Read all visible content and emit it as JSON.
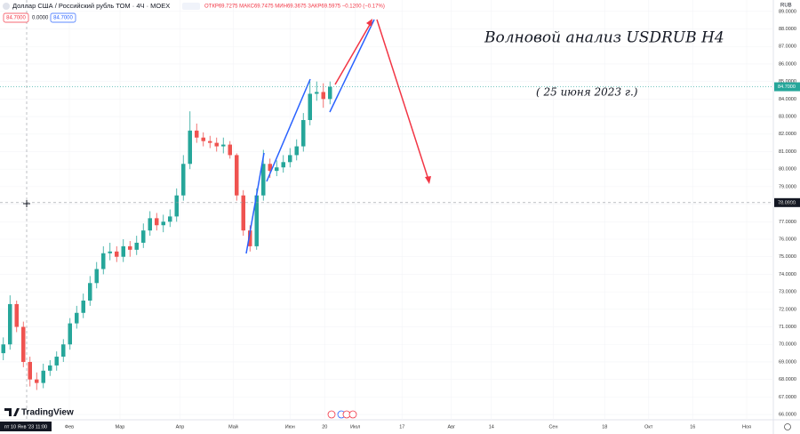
{
  "header": {
    "symbol": "Доллар США / Российский рубль ТОМ · 4Ч · MOEX",
    "ohlc": "ОТКР69.7275 МАКС69.7475 МИН69.3675 ЗАКР69.5975 −0.1200 (−0.17%)",
    "sell": "84.7000",
    "spread": "0.0000",
    "buy": "84.7000",
    "currency": "RUB",
    "logo": "TradingView"
  },
  "chart_data": {
    "type": "candlestick",
    "title": "Волновой анализ USDRUB H4",
    "subtitle": "( 25 июня 2023 г.)",
    "up_color": "#26a69a",
    "down_color": "#ef5350",
    "x": [
      0.5,
      1.5,
      2.5,
      3.5,
      4.5,
      5.5,
      6.5,
      7.5,
      8.5,
      9.5,
      10.5,
      11.5,
      12.5,
      13.5,
      14.5,
      15.5,
      16.5,
      17.5,
      18.5,
      19.5,
      20.5,
      21.5,
      22.5,
      23.5,
      24.5,
      25.5,
      26.5,
      27.5,
      28.5,
      29.5,
      30.5,
      31.5,
      32.5,
      33.5,
      34.5,
      35.5,
      36.5,
      37.5,
      38.5,
      39.5,
      40.5,
      41.5,
      42.5,
      43.5,
      44.5,
      45.5,
      46.5,
      47.5,
      48.5,
      49.5
    ],
    "open": [
      69.5,
      70.0,
      72.3,
      71.0,
      69.0,
      68.0,
      67.8,
      68.5,
      68.8,
      69.3,
      70.0,
      71.2,
      71.8,
      72.5,
      73.5,
      74.3,
      75.2,
      75.3,
      75.0,
      75.6,
      75.4,
      75.8,
      76.5,
      77.2,
      76.8,
      77.0,
      77.3,
      78.5,
      80.3,
      82.2,
      81.8,
      81.6,
      81.5,
      81.3,
      81.4,
      80.8,
      78.5,
      76.5,
      75.6,
      78.5,
      80.3,
      79.9,
      80.1,
      80.4,
      80.8,
      81.3,
      82.8,
      84.3,
      84.4,
      84.0
    ],
    "close": [
      70.0,
      72.3,
      71.0,
      69.0,
      68.0,
      67.8,
      68.5,
      68.8,
      69.3,
      70.0,
      71.2,
      71.8,
      72.5,
      73.5,
      74.3,
      75.2,
      75.3,
      75.0,
      75.6,
      75.4,
      75.8,
      76.5,
      77.2,
      76.8,
      77.0,
      77.3,
      78.5,
      80.3,
      82.2,
      81.8,
      81.6,
      81.5,
      81.3,
      81.4,
      80.8,
      78.5,
      76.5,
      75.6,
      78.5,
      80.3,
      79.9,
      80.1,
      80.4,
      80.8,
      81.3,
      82.8,
      84.3,
      84.4,
      84.0,
      84.7
    ],
    "high": [
      70.4,
      72.8,
      72.5,
      71.3,
      69.3,
      68.4,
      68.9,
      69.1,
      69.6,
      70.3,
      71.5,
      72.2,
      72.9,
      73.9,
      74.7,
      75.6,
      75.8,
      75.6,
      76.0,
      75.9,
      76.2,
      76.9,
      77.6,
      77.5,
      77.4,
      77.7,
      78.9,
      80.8,
      83.3,
      82.6,
      82.1,
      81.9,
      81.8,
      81.8,
      81.6,
      80.9,
      78.8,
      76.8,
      78.9,
      81.1,
      80.6,
      80.5,
      80.8,
      81.2,
      81.7,
      83.2,
      85.0,
      85.0,
      84.9,
      85.0
    ],
    "low": [
      69.1,
      69.7,
      70.7,
      68.7,
      67.6,
      67.4,
      67.5,
      68.2,
      68.5,
      69.0,
      69.7,
      70.9,
      71.5,
      72.2,
      73.2,
      74.0,
      74.8,
      74.7,
      74.7,
      75.0,
      75.1,
      75.5,
      76.2,
      76.5,
      76.4,
      76.7,
      77.0,
      78.2,
      80.0,
      81.5,
      81.3,
      81.2,
      81.0,
      80.9,
      80.6,
      78.2,
      76.2,
      75.3,
      75.4,
      78.2,
      79.5,
      79.6,
      79.8,
      80.1,
      80.5,
      81.0,
      82.5,
      83.9,
      83.5,
      83.7
    ],
    "xlim": [
      0,
      116
    ],
    "ylim": [
      65.7,
      89.65
    ],
    "xticks": [
      {
        "value": 10.4,
        "label": "Фев"
      },
      {
        "value": 18,
        "label": "Мар"
      },
      {
        "value": 27,
        "label": "Апр"
      },
      {
        "value": 35,
        "label": "Май"
      },
      {
        "value": 43.5,
        "label": "Июн"
      },
      {
        "value": 48.7,
        "label": "20"
      },
      {
        "value": 53.3,
        "label": "Июл"
      },
      {
        "value": 60.3,
        "label": "17"
      },
      {
        "value": 67.7,
        "label": "Авг"
      },
      {
        "value": 73.7,
        "label": "14"
      },
      {
        "value": 83,
        "label": "Сен"
      },
      {
        "value": 90.7,
        "label": "18"
      },
      {
        "value": 97.3,
        "label": "Окт"
      },
      {
        "value": 103.9,
        "label": "16"
      },
      {
        "value": 112,
        "label": "Ноя"
      }
    ],
    "yticks": [
      {
        "value": 66,
        "label": "66.0000"
      },
      {
        "value": 67,
        "label": "67.0000"
      },
      {
        "value": 68,
        "label": "68.0000"
      },
      {
        "value": 69,
        "label": "69.0000"
      },
      {
        "value": 70,
        "label": "70.0000"
      },
      {
        "value": 71,
        "label": "71.0000"
      },
      {
        "value": 72,
        "label": "72.0000"
      },
      {
        "value": 73,
        "label": "73.0000"
      },
      {
        "value": 74,
        "label": "74.0000"
      },
      {
        "value": 75,
        "label": "75.0000"
      },
      {
        "value": 76,
        "label": "76.0000"
      },
      {
        "value": 77,
        "label": "77.0000"
      },
      {
        "value": 78,
        "label": "78.0000"
      },
      {
        "value": 79,
        "label": "79.0000"
      },
      {
        "value": 80,
        "label": "80.0000"
      },
      {
        "value": 81,
        "label": "81.0000"
      },
      {
        "value": 82,
        "label": "82.0000"
      },
      {
        "value": 83,
        "label": "83.0000"
      },
      {
        "value": 84,
        "label": "84.0000"
      },
      {
        "value": 85,
        "label": "85.0000"
      },
      {
        "value": 86,
        "label": "86.0000"
      },
      {
        "value": 87,
        "label": "87.0000"
      },
      {
        "value": 88,
        "label": "88.0000"
      },
      {
        "value": 89,
        "label": "89.0000"
      }
    ],
    "last_price": {
      "value": 84.7,
      "label": "84.7000"
    },
    "crosshair": {
      "value": 78.09,
      "label": "78.0900",
      "time": "пт 10 Янв '23 11:00"
    }
  }
}
